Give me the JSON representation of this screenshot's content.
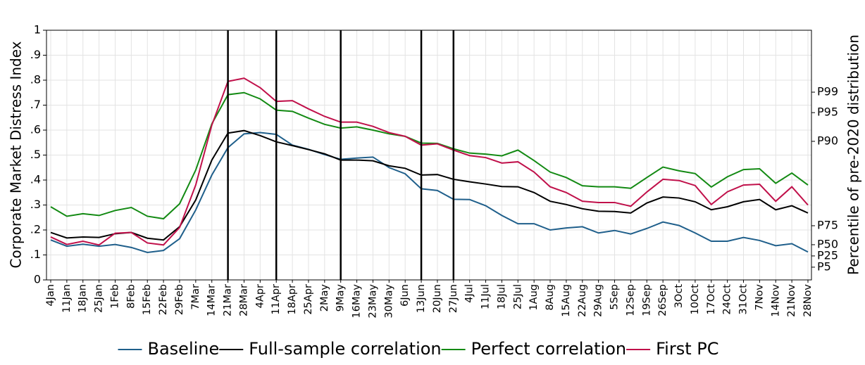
{
  "chart_data": {
    "type": "line",
    "y_label": "Corporate Market Distress Index",
    "y2_label": "Percentile of pre-2020 distribution",
    "categories": [
      "4Jan",
      "11Jan",
      "18Jan",
      "25Jan",
      "1Feb",
      "8Feb",
      "15Feb",
      "22Feb",
      "29Feb",
      "7Mar",
      "14Mar",
      "21Mar",
      "28Mar",
      "4Apr",
      "11Apr",
      "18Apr",
      "25Apr",
      "2May",
      "9May",
      "16May",
      "23May",
      "30May",
      "6Jun",
      "13Jun",
      "20Jun",
      "27Jun",
      "4Jul",
      "11Jul",
      "18Jul",
      "25Jul",
      "1Aug",
      "8Aug",
      "15Aug",
      "22Aug",
      "29Aug",
      "5Sep",
      "12Sep",
      "19Sep",
      "26Sep",
      "3Oct",
      "10Oct",
      "17Oct",
      "24Oct",
      "31Oct",
      "7Nov",
      "14Nov",
      "21Nov",
      "28Nov"
    ],
    "series": [
      {
        "name": "Baseline",
        "color": "#1f5f8b",
        "values": [
          0.16,
          0.135,
          0.143,
          0.135,
          0.142,
          0.13,
          0.11,
          0.118,
          0.165,
          0.28,
          0.42,
          0.53,
          0.585,
          0.59,
          0.583,
          0.54,
          0.523,
          0.502,
          0.483,
          0.488,
          0.492,
          0.45,
          0.425,
          0.365,
          0.358,
          0.323,
          0.322,
          0.297,
          0.258,
          0.225,
          0.225,
          0.2,
          0.208,
          0.213,
          0.188,
          0.198,
          0.184,
          0.206,
          0.232,
          0.218,
          0.188,
          0.155,
          0.155,
          0.17,
          0.158,
          0.137,
          0.145,
          0.112
        ]
      },
      {
        "name": "Full-sample correlation",
        "color": "#000000",
        "values": [
          0.19,
          0.168,
          0.172,
          0.17,
          0.185,
          0.19,
          0.167,
          0.16,
          0.213,
          0.32,
          0.48,
          0.588,
          0.598,
          0.578,
          0.553,
          0.538,
          0.522,
          0.505,
          0.48,
          0.48,
          0.477,
          0.457,
          0.447,
          0.42,
          0.422,
          0.403,
          0.393,
          0.384,
          0.374,
          0.373,
          0.35,
          0.315,
          0.302,
          0.285,
          0.275,
          0.274,
          0.268,
          0.308,
          0.332,
          0.328,
          0.313,
          0.281,
          0.293,
          0.313,
          0.322,
          0.281,
          0.297,
          0.268
        ]
      },
      {
        "name": "Perfect correlation",
        "color": "#138a13",
        "values": [
          0.293,
          0.255,
          0.265,
          0.258,
          0.278,
          0.29,
          0.255,
          0.245,
          0.305,
          0.44,
          0.625,
          0.742,
          0.75,
          0.725,
          0.68,
          0.675,
          0.648,
          0.623,
          0.608,
          0.613,
          0.6,
          0.585,
          0.575,
          0.548,
          0.547,
          0.525,
          0.508,
          0.504,
          0.497,
          0.52,
          0.478,
          0.432,
          0.41,
          0.377,
          0.373,
          0.373,
          0.367,
          0.41,
          0.452,
          0.437,
          0.426,
          0.372,
          0.413,
          0.442,
          0.445,
          0.387,
          0.428,
          0.38
        ]
      },
      {
        "name": "First PC",
        "color": "#c0104a",
        "values": [
          0.172,
          0.142,
          0.155,
          0.14,
          0.187,
          0.19,
          0.148,
          0.14,
          0.21,
          0.38,
          0.62,
          0.795,
          0.808,
          0.77,
          0.715,
          0.718,
          0.685,
          0.655,
          0.632,
          0.632,
          0.615,
          0.59,
          0.575,
          0.54,
          0.545,
          0.52,
          0.498,
          0.49,
          0.468,
          0.473,
          0.432,
          0.373,
          0.35,
          0.315,
          0.31,
          0.31,
          0.295,
          0.352,
          0.403,
          0.398,
          0.378,
          0.302,
          0.353,
          0.38,
          0.383,
          0.315,
          0.373,
          0.3
        ]
      }
    ],
    "vertical_lines": [
      "21Mar",
      "11Apr",
      "9May",
      "13Jun",
      "27Jun"
    ],
    "ylim": [
      0,
      1
    ],
    "yticks": [
      0,
      {
        "value": 0.1,
        "label": ".1"
      },
      {
        "value": 0.2,
        "label": ".2"
      },
      {
        "value": 0.3,
        "label": ".3"
      },
      {
        "value": 0.4,
        "label": ".4"
      },
      {
        "value": 0.5,
        "label": ".5"
      },
      {
        "value": 0.6,
        "label": ".6"
      },
      {
        "value": 0.7,
        "label": ".7"
      },
      {
        "value": 0.8,
        "label": ".8"
      },
      {
        "value": 0.9,
        "label": ".9"
      },
      1
    ],
    "y2lim": [
      0,
      1
    ],
    "y2ticks": [
      {
        "value": 0.051,
        "label": "P5"
      },
      {
        "value": 0.096,
        "label": "P25"
      },
      {
        "value": 0.141,
        "label": "P50"
      },
      {
        "value": 0.217,
        "label": "P75"
      },
      {
        "value": 0.555,
        "label": "P90"
      },
      {
        "value": 0.67,
        "label": "P95"
      },
      {
        "value": 0.752,
        "label": "P99"
      }
    ],
    "grid": true,
    "legend": "bottom"
  }
}
